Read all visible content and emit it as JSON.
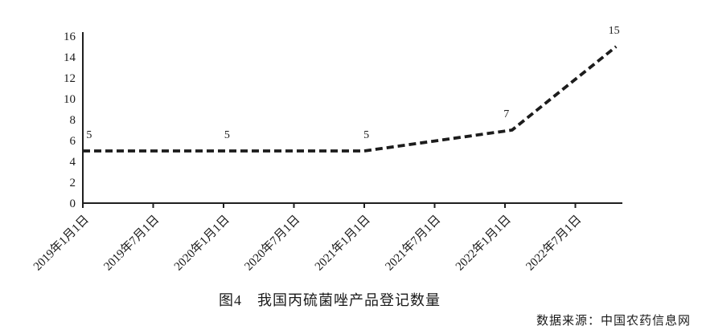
{
  "figure": {
    "caption": "图4　我国丙硫菌唑产品登记数量",
    "source": "数据来源：中国农药信息网"
  },
  "chart_data": {
    "type": "line",
    "title": "图4 我国丙硫菌唑产品登记数量",
    "series_name": "丙硫菌唑产品登记数量",
    "x_tick_labels": [
      "2019年1月1日",
      "2019年7月1日",
      "2020年1月1日",
      "2020年7月1日",
      "2021年1月1日",
      "2021年7月1日",
      "2022年1月1日",
      "2022年7月1日"
    ],
    "y_ticks": [
      0,
      2,
      4,
      6,
      8,
      10,
      12,
      14,
      16
    ],
    "ylim": [
      0,
      16
    ],
    "grid": "off",
    "legend": "none",
    "line_style": "dashed",
    "line_color": "#1c1c1c",
    "points": [
      {
        "x": 0,
        "y": 5
      },
      {
        "x": 4,
        "y": 5
      },
      {
        "x": 6.1,
        "y": 7
      },
      {
        "x": 7.58,
        "y": 15
      }
    ],
    "point_labels": [
      {
        "text": "5",
        "x": 0.05,
        "y": 5
      },
      {
        "text": "5",
        "x": 2.05,
        "y": 5
      },
      {
        "text": "5",
        "x": 4.03,
        "y": 5
      },
      {
        "text": "7",
        "x": 6.02,
        "y": 7
      },
      {
        "text": "15",
        "x": 7.55,
        "y": 15
      }
    ]
  }
}
